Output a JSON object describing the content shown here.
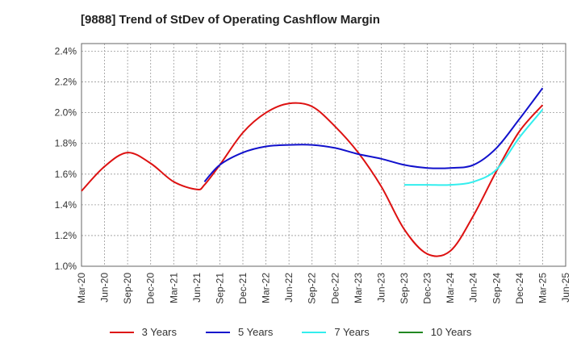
{
  "chart_data": {
    "type": "line",
    "title": "[9888]  Trend of StDev of Operating Cashflow Margin",
    "xlabel": "",
    "ylabel": "",
    "x_ticks": [
      "Mar-20",
      "Jun-20",
      "Sep-20",
      "Dec-20",
      "Mar-21",
      "Jun-21",
      "Sep-21",
      "Dec-21",
      "Mar-22",
      "Jun-22",
      "Sep-22",
      "Dec-22",
      "Mar-23",
      "Jun-23",
      "Sep-23",
      "Dec-23",
      "Mar-24",
      "Jun-24",
      "Sep-24",
      "Dec-24",
      "Mar-25",
      "Jun-25"
    ],
    "y_ticks": [
      "1.0%",
      "1.2%",
      "1.4%",
      "1.6%",
      "1.8%",
      "2.0%",
      "2.2%",
      "2.4%"
    ],
    "ylim": [
      1.0,
      2.45
    ],
    "grid": true,
    "legend_position": "bottom",
    "series": [
      {
        "name": "3 Years",
        "color": "#dd1111",
        "x": [
          "Mar-20",
          "Jun-20",
          "Sep-20",
          "Dec-20",
          "Mar-21",
          "Jun-21",
          "Jul-21",
          "Sep-21",
          "Dec-21",
          "Mar-22",
          "Jun-22",
          "Sep-22",
          "Dec-22",
          "Mar-23",
          "Jun-23",
          "Sep-23",
          "Dec-23",
          "Mar-24",
          "Jun-24",
          "Sep-24",
          "Dec-24",
          "Mar-25"
        ],
        "values": [
          1.49,
          1.65,
          1.74,
          1.67,
          1.55,
          1.5,
          1.53,
          1.66,
          1.87,
          2.0,
          2.06,
          2.04,
          1.91,
          1.74,
          1.52,
          1.24,
          1.08,
          1.1,
          1.33,
          1.62,
          1.88,
          2.05
        ]
      },
      {
        "name": "5 Years",
        "color": "#1111cc",
        "x": [
          "Jul-21",
          "Sep-21",
          "Dec-21",
          "Mar-22",
          "Jun-22",
          "Sep-22",
          "Dec-22",
          "Mar-23",
          "Jun-23",
          "Sep-23",
          "Dec-23",
          "Mar-24",
          "Jun-24",
          "Sep-24",
          "Dec-24",
          "Mar-25"
        ],
        "values": [
          1.55,
          1.66,
          1.74,
          1.78,
          1.79,
          1.79,
          1.77,
          1.73,
          1.7,
          1.66,
          1.64,
          1.64,
          1.66,
          1.77,
          1.96,
          2.16
        ]
      },
      {
        "name": "7 Years",
        "color": "#33eeee",
        "x": [
          "Sep-23",
          "Dec-23",
          "Mar-24",
          "Jun-24",
          "Sep-24",
          "Dec-24",
          "Mar-25"
        ],
        "values": [
          1.53,
          1.53,
          1.53,
          1.55,
          1.63,
          1.84,
          2.02
        ]
      },
      {
        "name": "10 Years",
        "color": "#228822",
        "x": [],
        "values": []
      }
    ]
  }
}
